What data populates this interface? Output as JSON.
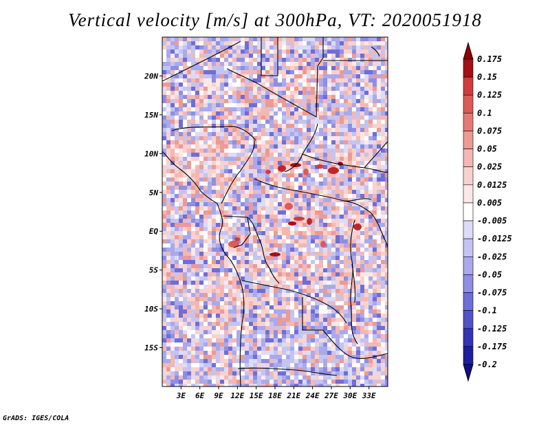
{
  "title": "Vertical velocity [m/s] at 300hPa, VT: 2020051918",
  "credit": "GrADS: IGES/COLA",
  "map": {
    "lon_range": [
      0,
      36
    ],
    "lat_range": [
      -20,
      25
    ],
    "lat_ticks": [
      {
        "label": "20N",
        "value": 20
      },
      {
        "label": "15N",
        "value": 15
      },
      {
        "label": "10N",
        "value": 10
      },
      {
        "label": "5N",
        "value": 5
      },
      {
        "label": "EQ",
        "value": 0
      },
      {
        "label": "5S",
        "value": -5
      },
      {
        "label": "10S",
        "value": -10
      },
      {
        "label": "15S",
        "value": -15
      }
    ],
    "lon_ticks": [
      {
        "label": "3E",
        "value": 3
      },
      {
        "label": "6E",
        "value": 6
      },
      {
        "label": "9E",
        "value": 9
      },
      {
        "label": "12E",
        "value": 12
      },
      {
        "label": "15E",
        "value": 15
      },
      {
        "label": "18E",
        "value": 18
      },
      {
        "label": "21E",
        "value": 21
      },
      {
        "label": "24E",
        "value": 24
      },
      {
        "label": "27E",
        "value": 27
      },
      {
        "label": "30E",
        "value": 30
      },
      {
        "label": "33E",
        "value": 33
      }
    ]
  },
  "colorbar": {
    "levels": [
      {
        "label": "0.175",
        "color": "#a50f15"
      },
      {
        "label": "0.15",
        "color": "#c0252b"
      },
      {
        "label": "0.125",
        "color": "#d23b3b"
      },
      {
        "label": "0.1",
        "color": "#dd5a55"
      },
      {
        "label": "0.075",
        "color": "#e57a74"
      },
      {
        "label": "0.05",
        "color": "#ed9a94"
      },
      {
        "label": "0.025",
        "color": "#f3b8b3"
      },
      {
        "label": "0.0125",
        "color": "#f8d2ce"
      },
      {
        "label": "0.005",
        "color": "#fce9e7"
      },
      {
        "label": "-0.005",
        "color": "#ffffff"
      },
      {
        "label": "-0.0125",
        "color": "#dcdcf8"
      },
      {
        "label": "-0.025",
        "color": "#c4c4f2"
      },
      {
        "label": "-0.05",
        "color": "#a9a9ec"
      },
      {
        "label": "-0.075",
        "color": "#8e8ee4"
      },
      {
        "label": "-0.1",
        "color": "#6e6ed9"
      },
      {
        "label": "-0.125",
        "color": "#5252c9"
      },
      {
        "label": "-0.175",
        "color": "#3434b5"
      },
      {
        "label": "-0.2",
        "color": "#1e1e9c"
      }
    ],
    "top_cap_color": "#8b0000",
    "bottom_cap_color": "#10107a"
  }
}
